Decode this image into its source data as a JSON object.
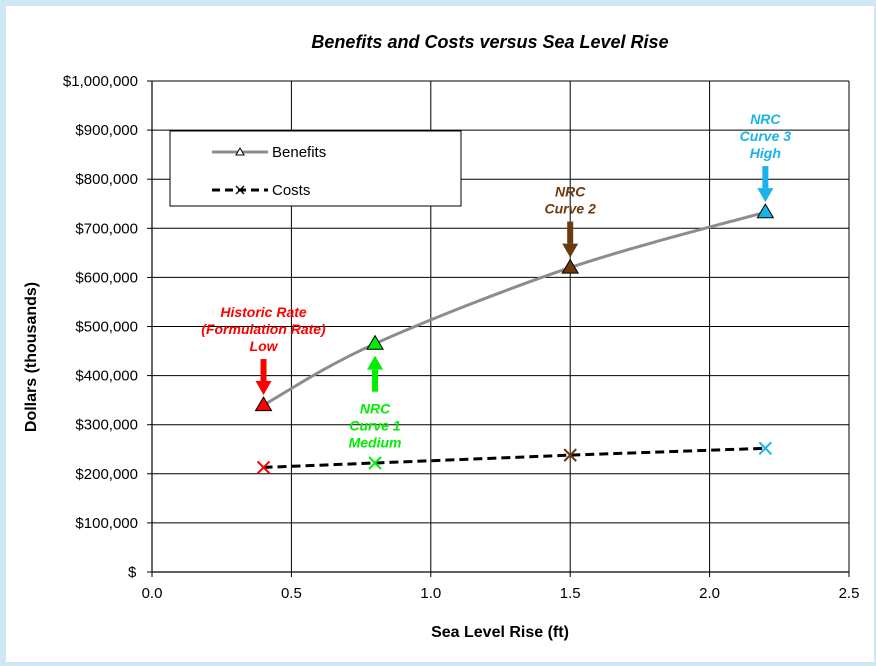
{
  "chart_data": {
    "type": "line",
    "title": "Benefits and Costs versus Sea Level Rise",
    "xlabel": "Sea Level Rise (ft)",
    "ylabel": "Dollars (thousands)",
    "xlim": [
      0.0,
      2.5
    ],
    "ylim": [
      0,
      1000000
    ],
    "x_ticks": [
      "0.0",
      "0.5",
      "1.0",
      "1.5",
      "2.0",
      "2.5"
    ],
    "y_ticks": [
      "$",
      "$100,000",
      "$200,000",
      "$300,000",
      "$400,000",
      "$500,000",
      "$600,000",
      "$700,000",
      "$800,000",
      "$900,000",
      "$1,000,000"
    ],
    "grid": "vertical and horizontal",
    "legend_position": "top-left",
    "series": [
      {
        "name": "Benefits",
        "line_color": "#8c8c8c",
        "x": [
          0.4,
          0.8,
          1.5,
          2.2
        ],
        "y": [
          340000,
          465000,
          620000,
          733000
        ],
        "marker_colors": [
          "#ff0000",
          "#00ee00",
          "#6b3a0f",
          "#1ab2ea"
        ]
      },
      {
        "name": "Costs",
        "line_color": "#000000",
        "x": [
          0.4,
          0.8,
          1.5,
          2.2
        ],
        "y": [
          213000,
          222000,
          238000,
          252000
        ],
        "marker_colors": [
          "#ff0000",
          "#00ee00",
          "#6b3a0f",
          "#1ab2ea"
        ]
      }
    ],
    "annotations": [
      {
        "lines": [
          "Historic Rate",
          "(Formulation Rate)",
          "Low"
        ],
        "color": "#ff0000",
        "x": 0.4,
        "y": 340000,
        "arrow": "down"
      },
      {
        "lines": [
          "NRC",
          "Curve 1",
          "Medium"
        ],
        "color": "#00ee00",
        "x": 0.8,
        "y": 465000,
        "arrow": "up"
      },
      {
        "lines": [
          "NRC",
          "Curve 2"
        ],
        "color": "#6b3a0f",
        "x": 1.5,
        "y": 620000,
        "arrow": "down"
      },
      {
        "lines": [
          "NRC",
          "Curve 3",
          "High"
        ],
        "color": "#1ab2ea",
        "x": 2.2,
        "y": 733000,
        "arrow": "down"
      }
    ]
  }
}
